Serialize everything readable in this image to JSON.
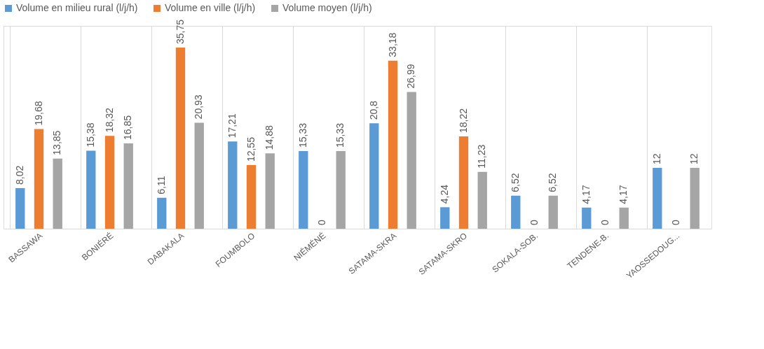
{
  "chart_data": {
    "type": "bar",
    "categories": [
      "BASSAWA",
      "BONIÉRÉ",
      "DABAKALA",
      "FOUMBOLO",
      "NIÉMÉNÉ",
      "SATAMA-SKRA",
      "SATAMA-SKRO",
      "SOKALA-SOB.",
      "TENDENE-B.",
      "YAOSSEDOUG..."
    ],
    "series": [
      {
        "name": "Volume en milieu rural (l/j/h)",
        "color": "#5b9bd5",
        "values": [
          8.02,
          15.38,
          6.11,
          17.21,
          15.33,
          20.8,
          4.24,
          6.52,
          4.17,
          12
        ],
        "value_labels": [
          "8,02",
          "15,38",
          "6,11",
          "17,21",
          "15,33",
          "20,8",
          "4,24",
          "6,52",
          "4,17",
          "12"
        ]
      },
      {
        "name": "Volume en ville (l/j/h)",
        "color": "#ed7d31",
        "values": [
          19.68,
          18.32,
          35.75,
          12.55,
          0,
          33.18,
          18.22,
          0,
          0,
          0
        ],
        "value_labels": [
          "19,68",
          "18,32",
          "35,75",
          "12,55",
          "0",
          "33,18",
          "18,22",
          "0",
          "0",
          "0"
        ]
      },
      {
        "name": "Volume moyen (l/j/h)",
        "color": "#a5a5a5",
        "values": [
          13.85,
          16.85,
          20.93,
          14.88,
          15.33,
          26.99,
          11.23,
          6.52,
          4.17,
          12
        ],
        "value_labels": [
          "13,85",
          "16,85",
          "20,93",
          "14,88",
          "15,33",
          "26,99",
          "11,23",
          "6,52",
          "4,17",
          "12"
        ]
      }
    ],
    "grid": "x",
    "legend": "top",
    "tick_labels": "x"
  }
}
